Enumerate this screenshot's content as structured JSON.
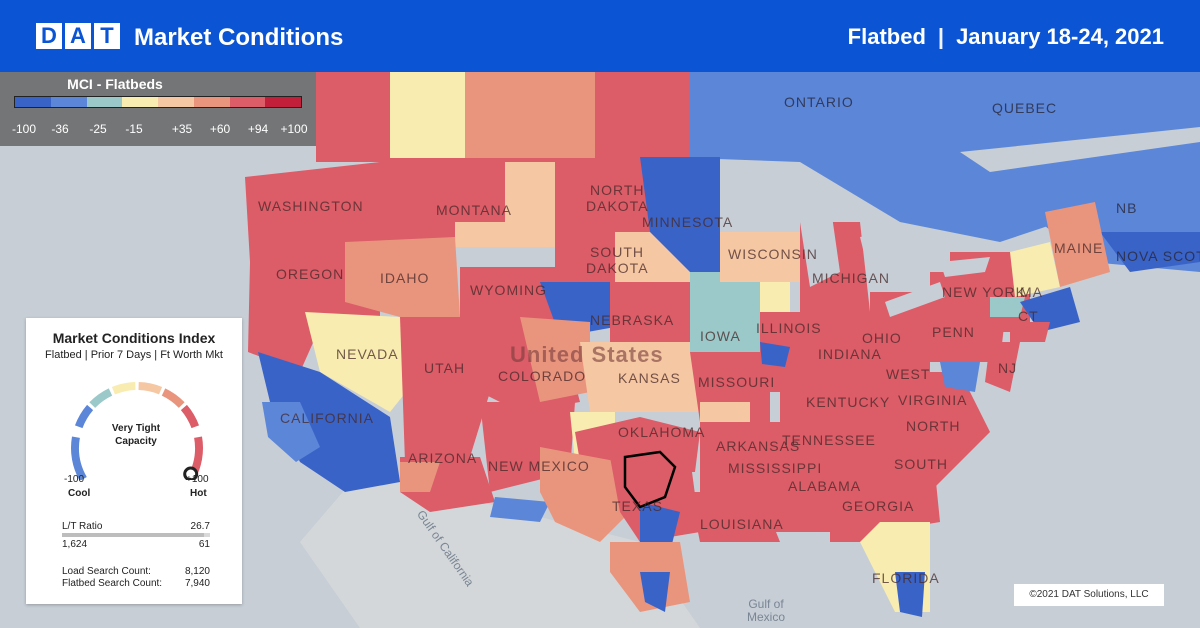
{
  "header": {
    "logo_letters": [
      "D",
      "A",
      "T"
    ],
    "title": "Market Conditions",
    "equipment": "Flatbed",
    "separator": "|",
    "date_range": "January 18-24, 2021"
  },
  "legend": {
    "title": "MCI - Flatbeds",
    "colors": [
      "#3a63c8",
      "#5c86d8",
      "#9bc8c8",
      "#f8ecb0",
      "#f6c7a3",
      "#e9957e",
      "#dc5c68",
      "#c21f3a"
    ],
    "ticks": [
      "-100",
      "-36",
      "-25",
      "-15",
      "+35",
      "+60",
      "+94",
      "+100"
    ]
  },
  "card": {
    "title": "Market Conditions Index",
    "subtitle": "Flatbed | Prior 7 Days | Ft Worth Mkt",
    "gauge_status_line1": "Very Tight",
    "gauge_status_line2": "Capacity",
    "gauge_value": 100,
    "gauge_min": "-100",
    "gauge_max": "+100",
    "gauge_min_label": "Cool",
    "gauge_max_label": "Hot",
    "lt_ratio_label": "L/T Ratio",
    "lt_ratio_value": "26.7",
    "lt_ratio_fraction": 0.96,
    "loads": "1,624",
    "trucks": "61",
    "load_search_label": "Load Search Count:",
    "load_search_value": "8,120",
    "flatbed_search_label": "Flatbed Search Count:",
    "flatbed_search_value": "7,940"
  },
  "map": {
    "colors": {
      "hot": "#dc5c68",
      "warm": "#e9957e",
      "peach": "#f6c7a3",
      "pale": "#f8ecb0",
      "mint": "#9bc8c8",
      "cool": "#5c86d8",
      "cold": "#3a63c8",
      "water": "#c7ced6",
      "land_gray": "#d4d7da",
      "border_highlight": "#000000"
    },
    "labels": {
      "ontario": "ONTARIO",
      "quebec": "QUEBEC",
      "washington": "WASHINGTON",
      "oregon": "OREGON",
      "montana": "MONTANA",
      "idaho": "IDAHO",
      "nevada": "NEVADA",
      "california": "CALIFORNIA",
      "utah": "UTAH",
      "arizona": "ARIZONA",
      "wyoming": "WYOMING",
      "colorado": "COLORADO",
      "new_mexico": "NEW MEXICO",
      "north_dakota_1": "NORTH",
      "north_dakota_2": "DAKOTA",
      "south_dakota_1": "SOUTH",
      "south_dakota_2": "DAKOTA",
      "nebraska": "NEBRASKA",
      "kansas": "KANSAS",
      "oklahoma": "OKLAHOMA",
      "texas": "TEXAS",
      "minnesota": "MINNESOTA",
      "iowa": "IOWA",
      "missouri": "MISSOURI",
      "arkansas": "ARKANSAS",
      "louisiana": "LOUISIANA",
      "wisconsin": "WISCONSIN",
      "illinois": "ILLINOIS",
      "michigan": "MICHIGAN",
      "indiana": "INDIANA",
      "ohio": "OHIO",
      "kentucky": "KENTUCKY",
      "tennessee": "TENNESSEE",
      "mississippi": "MISSISSIPPI",
      "alabama": "ALABAMA",
      "georgia": "GEORGIA",
      "florida": "FLORIDA",
      "south_carolina": "SOUTH",
      "north_carolina": "NORTH",
      "virginia": "VIRGINIA",
      "west_virginia": "WEST",
      "penn": "PENN",
      "new_york": "NEW YORK",
      "maine": "MAINE",
      "nj": "NJ",
      "nb": "NB",
      "nova_scotia": "NOVA SCOTI",
      "ma": "MA",
      "ct": "CT",
      "usa": "United States",
      "gulf_california": "Gulf of California",
      "gulf_mexico_1": "Gulf of",
      "gulf_mexico_2": "Mexico"
    }
  },
  "copyright": "©2021 DAT Solutions, LLC"
}
